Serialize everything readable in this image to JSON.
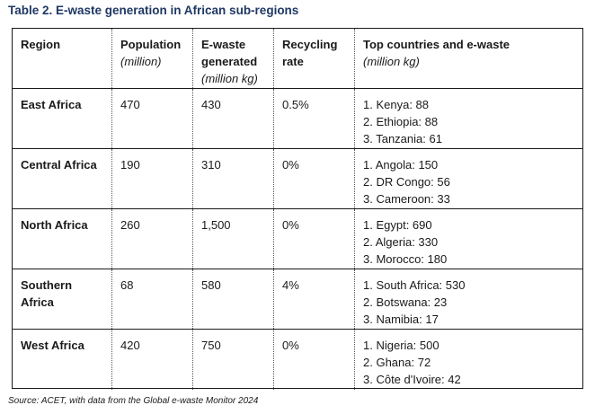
{
  "caption": "Table 2. E-waste generation in African sub-regions",
  "headers": {
    "region": {
      "label": "Region"
    },
    "population": {
      "label": "Population",
      "sub": "(million)"
    },
    "ewaste": {
      "label": "E-waste generated",
      "sub": "(million kg)"
    },
    "recycling": {
      "label": "Recycling rate"
    },
    "top": {
      "label": "Top countries and e-waste",
      "sub": "(million kg)"
    }
  },
  "rows": [
    {
      "region": "East Africa",
      "population": "470",
      "ewaste": "430",
      "recycling": "0.5%",
      "top": [
        "1. Kenya: 88",
        "2. Ethiopia: 88",
        "3. Tanzania: 61"
      ]
    },
    {
      "region": "Central Africa",
      "population": "190",
      "ewaste": "310",
      "recycling": "0%",
      "top": [
        "1. Angola: 150",
        "2. DR Congo: 56",
        "3. Cameroon: 33"
      ]
    },
    {
      "region": "North Africa",
      "population": "260",
      "ewaste": "1,500",
      "recycling": "0%",
      "top": [
        "1. Egypt: 690",
        "2. Algeria: 330",
        "3. Morocco: 180"
      ]
    },
    {
      "region": "Southern Africa",
      "population": "68",
      "ewaste": "580",
      "recycling": "4%",
      "top": [
        "1. South Africa: 530",
        "2. Botswana: 23",
        "3. Namibia: 17"
      ]
    },
    {
      "region": "West Africa",
      "population": "420",
      "ewaste": "750",
      "recycling": "0%",
      "top": [
        "1. Nigeria: 500",
        "2. Ghana: 72",
        "3. Côte d'Ivoire: 42"
      ]
    }
  ],
  "source": "Source: ACET, with data from the Global e-waste Monitor 2024"
}
